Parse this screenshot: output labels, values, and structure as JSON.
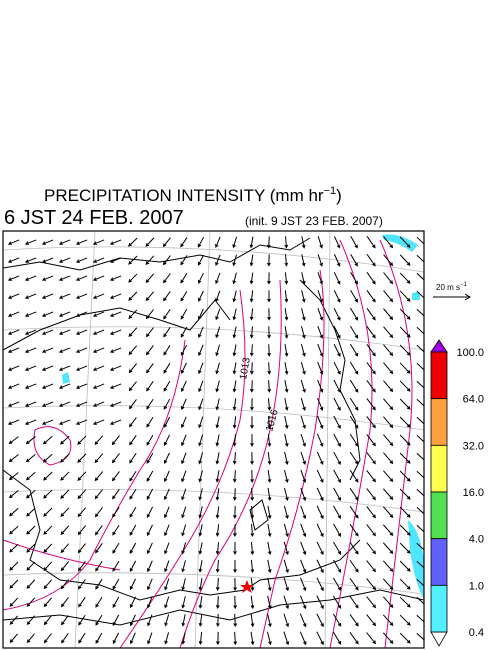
{
  "header": {
    "title": "PRECIPITATION INTENSITY (mm hr",
    "title_exponent": "−1",
    "title_close": ")",
    "valid_time": "6 JST 24 FEB. 2007",
    "init_time": "(init. 9 JST 23 FEB. 2007)"
  },
  "wind_scale": {
    "label": "20 m s",
    "exponent": "−1"
  },
  "contour_labels": [
    "1013",
    "1016"
  ],
  "colorbar": {
    "labels": [
      "100.0",
      "64.0",
      "32.0",
      "16.0",
      "4.0",
      "1.0",
      "0.4"
    ]
  }
}
